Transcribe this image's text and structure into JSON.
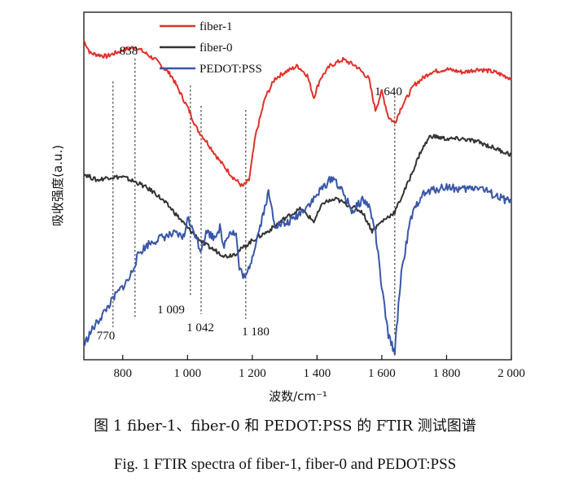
{
  "chart_data": {
    "type": "line",
    "xlabel": "波数/cm⁻¹",
    "ylabel": "吸收强度(a.u.)",
    "xlim": [
      680,
      2000
    ],
    "x_ticks": [
      800,
      1000,
      1200,
      1400,
      1600,
      1800,
      2000
    ],
    "x_tick_labels": [
      "800",
      "1 000",
      "1 200",
      "1 400",
      "1 600",
      "1 800",
      "2 000"
    ],
    "y_unit": "arbitrary (a.u.), no y tick labels",
    "ylim": [
      0,
      100
    ],
    "grid": false,
    "legend_position": "top-center",
    "series": [
      {
        "name": "fiber-1",
        "color": "#e0312b",
        "x": [
          680,
          700,
          750,
          800,
          840,
          900,
          950,
          1000,
          1030,
          1060,
          1100,
          1140,
          1170,
          1190,
          1210,
          1240,
          1270,
          1300,
          1340,
          1370,
          1390,
          1410,
          1440,
          1480,
          1520,
          1560,
          1580,
          1600,
          1620,
          1640,
          1660,
          1700,
          1750,
          1800,
          1850,
          1900,
          1950,
          2000
        ],
        "values": [
          98,
          94,
          93,
          95,
          96,
          92,
          87,
          77,
          70,
          66,
          60,
          55,
          52,
          54,
          68,
          80,
          86,
          88,
          90,
          87,
          80,
          86,
          90,
          92,
          90,
          86,
          76,
          82,
          74,
          72,
          77,
          84,
          88,
          89,
          88,
          89,
          88,
          86
        ]
      },
      {
        "name": "fiber-0",
        "color": "#333333",
        "x": [
          680,
          720,
          760,
          800,
          850,
          900,
          950,
          1000,
          1050,
          1100,
          1120,
          1150,
          1200,
          1250,
          1300,
          1350,
          1390,
          1420,
          1460,
          1500,
          1540,
          1570,
          1600,
          1640,
          1680,
          1720,
          1750,
          1800,
          1850,
          1900,
          1950,
          2000
        ],
        "values": [
          56,
          54,
          55,
          55,
          53,
          50,
          45,
          39,
          34,
          31,
          30,
          31,
          35,
          38,
          42,
          45,
          41,
          47,
          48,
          46,
          44,
          38,
          41,
          44,
          53,
          63,
          68,
          67,
          67,
          66,
          64,
          62
        ]
      },
      {
        "name": "PEDOT:PSS",
        "color": "#3a56a8",
        "x": [
          680,
          700,
          740,
          780,
          820,
          850,
          880,
          920,
          960,
          990,
          1000,
          1010,
          1020,
          1040,
          1060,
          1080,
          1100,
          1110,
          1130,
          1150,
          1160,
          1180,
          1200,
          1230,
          1250,
          1270,
          1300,
          1330,
          1360,
          1390,
          1420,
          1450,
          1480,
          1510,
          1540,
          1560,
          1580,
          1600,
          1620,
          1640,
          1660,
          1690,
          1720,
          1760,
          1800,
          1850,
          1900,
          1950,
          2000
        ],
        "values": [
          2,
          6,
          12,
          18,
          23,
          31,
          34,
          36,
          37,
          36,
          43,
          39,
          38,
          32,
          38,
          36,
          39,
          33,
          38,
          37,
          26,
          23,
          30,
          42,
          50,
          40,
          40,
          42,
          45,
          48,
          52,
          55,
          50,
          44,
          48,
          46,
          38,
          20,
          5,
          0,
          25,
          42,
          49,
          51,
          52,
          51,
          52,
          49,
          47
        ]
      }
    ],
    "annotations": [
      {
        "text": "838",
        "x": 838
      },
      {
        "text": "770",
        "x": 770
      },
      {
        "text": "1 009",
        "x": 1009
      },
      {
        "text": "1 042",
        "x": 1042
      },
      {
        "text": "1 180",
        "x": 1180
      },
      {
        "text": "1 640",
        "x": 1640
      }
    ]
  },
  "captions": {
    "cn": "图 1   fiber-1、fiber-0 和 PEDOT:PSS 的 FTIR 测试图谱",
    "en": "Fig. 1   FTIR spectra of fiber-1, fiber-0 and PEDOT:PSS"
  }
}
